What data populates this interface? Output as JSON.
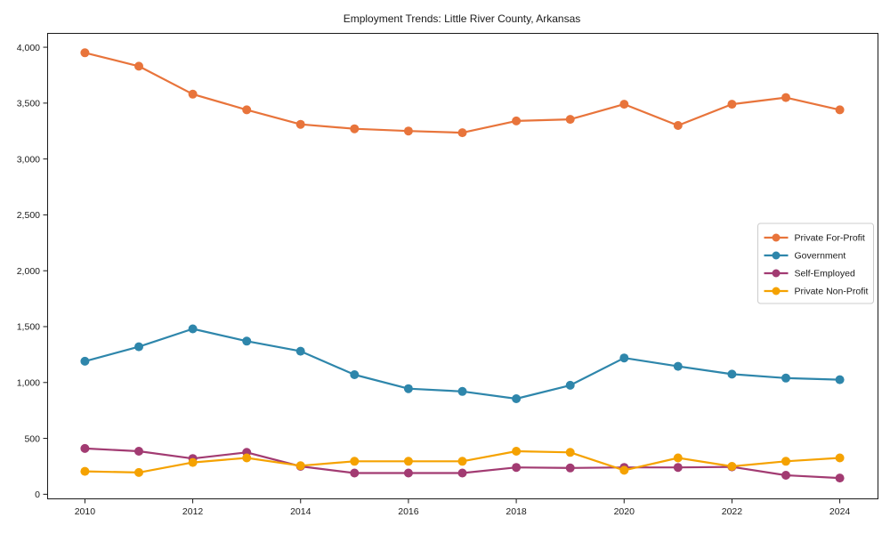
{
  "chart_data": {
    "type": "line",
    "title": "Employment Trends: Little River County, Arkansas",
    "xlabel": "",
    "ylabel": "",
    "x": [
      2010,
      2011,
      2012,
      2013,
      2014,
      2015,
      2016,
      2017,
      2018,
      2019,
      2020,
      2021,
      2022,
      2023,
      2024
    ],
    "x_ticks": [
      2010,
      2012,
      2014,
      2016,
      2018,
      2020,
      2022,
      2024
    ],
    "x_tick_labels": [
      "2010",
      "2012",
      "2014",
      "2016",
      "2018",
      "2020",
      "2022",
      "2024"
    ],
    "y_ticks": [
      0,
      500,
      1000,
      1500,
      2000,
      2500,
      3000,
      3500,
      4000
    ],
    "y_tick_labels": [
      "0",
      "500",
      "1,000",
      "1,500",
      "2,000",
      "2,500",
      "3,000",
      "3,500",
      "4,000"
    ],
    "xlim": [
      2009.3,
      2024.7
    ],
    "ylim": [
      -45,
      4120
    ],
    "grid": false,
    "legend_position": "center right",
    "series": [
      {
        "name": "Private For-Profit",
        "color": "#E8743B",
        "values": [
          3950,
          3830,
          3580,
          3440,
          3310,
          3270,
          3250,
          3235,
          3340,
          3355,
          3490,
          3300,
          3490,
          3550,
          3440
        ]
      },
      {
        "name": "Government",
        "color": "#2E86AB",
        "values": [
          1190,
          1320,
          1480,
          1370,
          1280,
          1070,
          945,
          920,
          855,
          975,
          1220,
          1145,
          1075,
          1040,
          1025
        ]
      },
      {
        "name": "Self-Employed",
        "color": "#A23B72",
        "values": [
          410,
          385,
          320,
          375,
          250,
          190,
          190,
          190,
          240,
          235,
          240,
          240,
          245,
          170,
          145
        ]
      },
      {
        "name": "Private Non-Profit",
        "color": "#F5A201",
        "values": [
          205,
          195,
          285,
          325,
          255,
          295,
          295,
          295,
          385,
          375,
          215,
          325,
          250,
          295,
          325
        ]
      }
    ]
  }
}
